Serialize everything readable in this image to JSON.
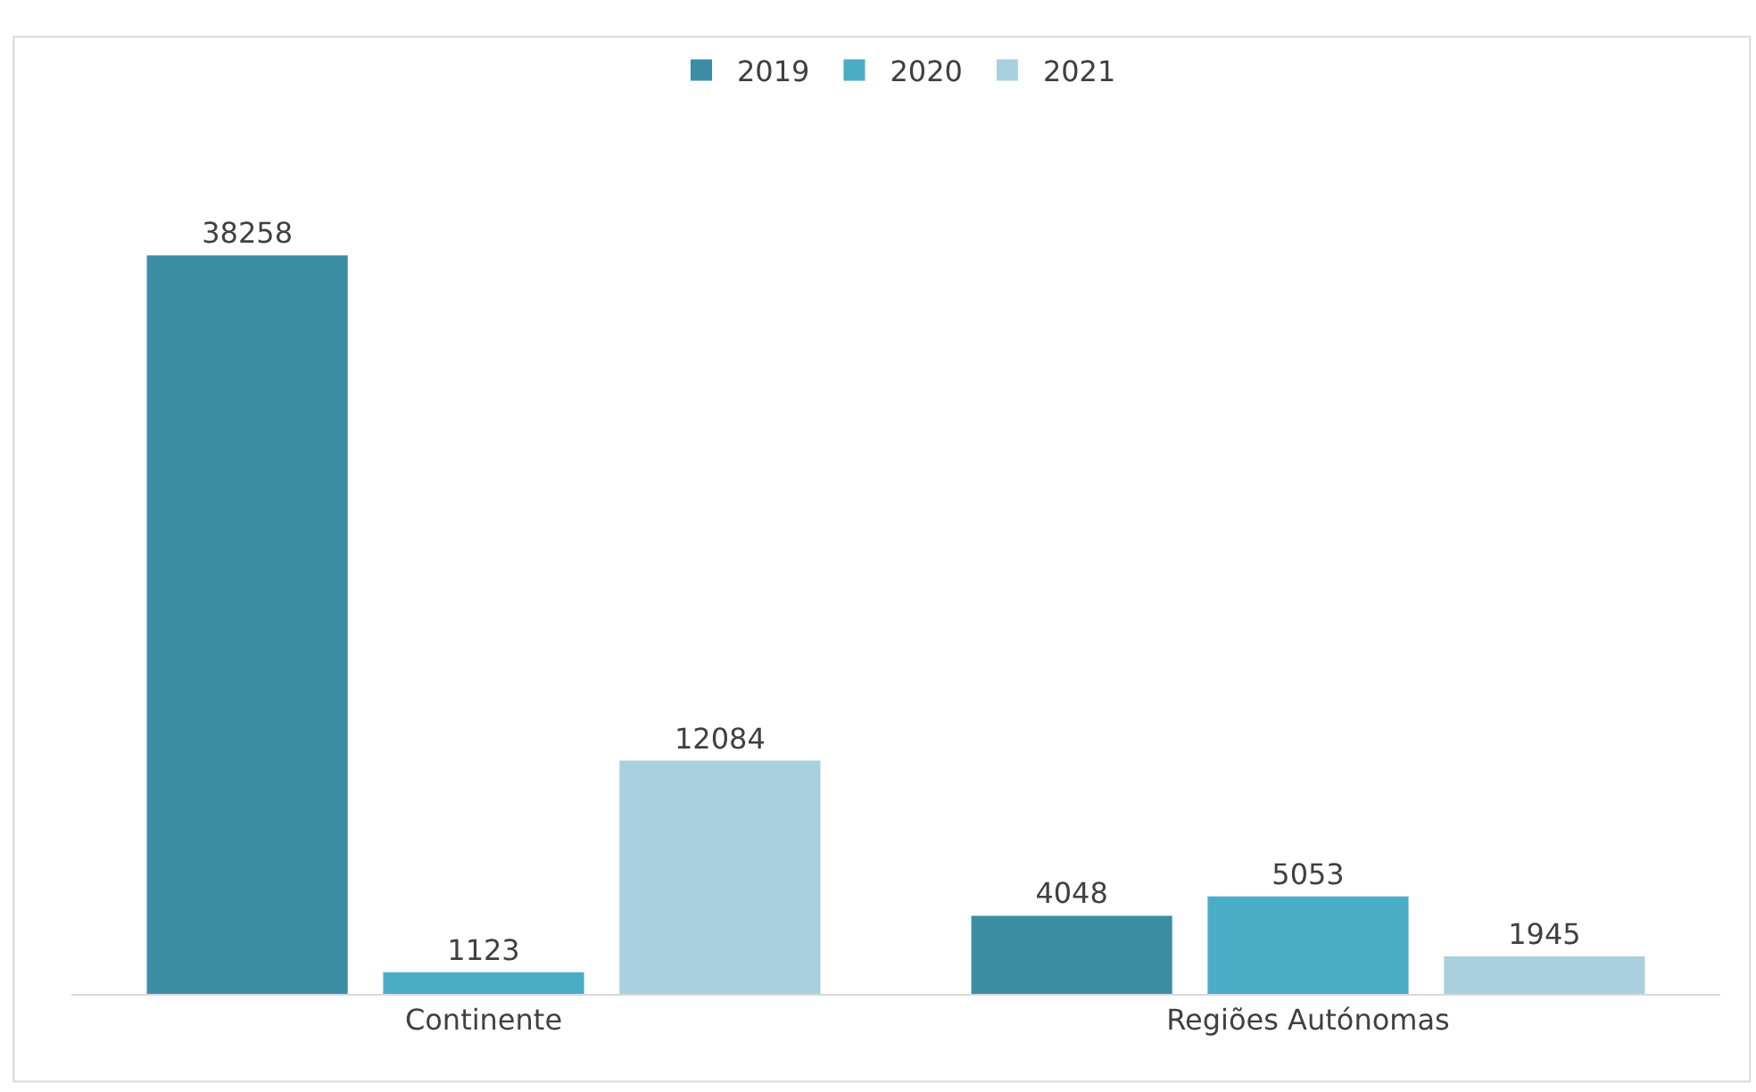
{
  "chart_data": {
    "type": "bar",
    "categories": [
      "Continente",
      "Regiões Autónomas"
    ],
    "series": [
      {
        "name": "2019",
        "color": "#3c8ea5",
        "values": [
          38258,
          4048
        ]
      },
      {
        "name": "2020",
        "color": "#4bacc6",
        "values": [
          1123,
          5053
        ]
      },
      {
        "name": "2021",
        "color": "#a9d0de",
        "values": [
          12084,
          1945
        ]
      }
    ],
    "data_labels": true,
    "legend": "top",
    "tick_labels": "x"
  }
}
